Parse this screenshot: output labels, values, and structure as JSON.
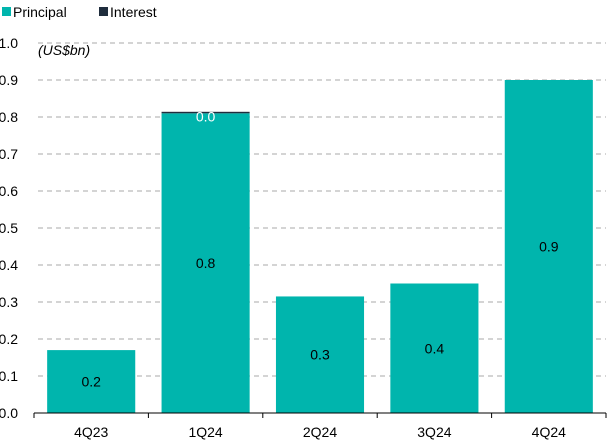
{
  "chart_data": {
    "type": "bar",
    "stacked": true,
    "unit_label": "(US$bn)",
    "categories": [
      "4Q23",
      "1Q24",
      "2Q24",
      "3Q24",
      "4Q24"
    ],
    "series": [
      {
        "name": "Principal",
        "color": "#00b5ad",
        "values": [
          0.17,
          0.81,
          0.315,
          0.35,
          0.9
        ],
        "labels": [
          "0.2",
          "0.8",
          "0.3",
          "0.4",
          "0.9"
        ]
      },
      {
        "name": "Interest",
        "color": "#1f2d3d",
        "values": [
          0.0,
          0.004,
          0.0,
          0.0,
          0.0
        ],
        "labels": [
          "",
          "0.0",
          "",
          "",
          ""
        ]
      }
    ],
    "y_ticks": [
      "0.0",
      "0.1",
      "0.2",
      "0.3",
      "0.4",
      "0.5",
      "0.6",
      "0.7",
      "0.8",
      "0.9",
      "1.0"
    ],
    "ylim": [
      0,
      1.0
    ],
    "grid": "horizontal-dashed",
    "legend_position": "top-left"
  }
}
